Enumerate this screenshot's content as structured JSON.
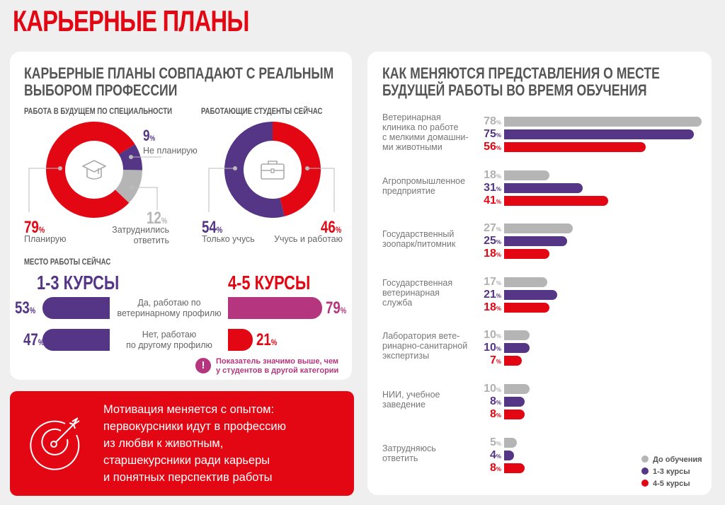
{
  "title": "КАРЬЕРНЫЕ ПЛАНЫ",
  "colors": {
    "red": "#e30613",
    "purple": "#553585",
    "gray": "#b5b5b5",
    "magenta": "#b5367e",
    "text": "#555555"
  },
  "left_card": {
    "title_line1": "КАРЬЕРНЫЕ ПЛАНЫ СОВПАДАЮТ С РЕАЛЬНЫМ",
    "title_line2": "ВЫБОРОМ ПРОФЕССИИ",
    "donut1": {
      "subtitle": "РАБОТА В БУДУЩЕМ ПО СПЕЦИАЛЬНОСТИ",
      "icon": "graduation-cap-icon",
      "slices": [
        {
          "value": "79",
          "unit": "%",
          "label": "Планирую",
          "color": "#e30613"
        },
        {
          "value": "9",
          "unit": "%",
          "label": "Не планирую",
          "color": "#553585"
        },
        {
          "value": "12",
          "unit": "%",
          "label_line1": "Затруднились",
          "label_line2": "ответить",
          "color": "#b5b5b5"
        }
      ]
    },
    "donut2": {
      "subtitle": "РАБОТАЮЩИЕ СТУДЕНТЫ СЕЙЧАС",
      "icon": "briefcase-icon",
      "slices": [
        {
          "value": "46",
          "unit": "%",
          "label": "Учусь и работаю",
          "color": "#e30613"
        },
        {
          "value": "54",
          "unit": "%",
          "label": "Только учусь",
          "color": "#553585"
        }
      ]
    },
    "workplace": {
      "subtitle": "МЕСТО РАБОТЫ СЕЙЧАС",
      "group1": "1-3 КУРСЫ",
      "group2": "4-5 КУРСЫ",
      "rows": [
        {
          "label_line1": "Да, работаю по",
          "label_line2": "ветеринарному профилю",
          "g1": "53",
          "g2": "79",
          "unit": "%"
        },
        {
          "label_line1": "Нет, работаю",
          "label_line2": "по другому профилю",
          "g1": "47",
          "g2": "21",
          "unit": "%"
        }
      ],
      "note_icon": "!",
      "note_line1": "Показатель значимо выше, чем",
      "note_line2": "у студентов в другой категории"
    }
  },
  "red_box": {
    "icon": "target-arrow-icon",
    "lines": [
      "Мотивация меняется с опытом:",
      "первокурсники идут в профессию",
      "из любви к животным,",
      "старшекурсники ради карьеры",
      "и понятных перспектив работы"
    ]
  },
  "chart_data": [
    {
      "type": "pie",
      "title": "РАБОТА В БУДУЩЕМ ПО СПЕЦИАЛЬНОСТИ",
      "categories": [
        "Планирую",
        "Не планирую",
        "Затруднились ответить"
      ],
      "values": [
        79,
        9,
        12
      ]
    },
    {
      "type": "pie",
      "title": "РАБОТАЮЩИЕ СТУДЕНТЫ СЕЙЧАС",
      "categories": [
        "Учусь и работаю",
        "Только учусь"
      ],
      "values": [
        46,
        54
      ]
    },
    {
      "type": "bar",
      "title": "МЕСТО РАБОТЫ СЕЙЧАС",
      "categories": [
        "Да, работаю по ветеринарному профилю",
        "Нет, работаю по другому профилю"
      ],
      "series": [
        {
          "name": "1-3 КУРСЫ",
          "values": [
            53,
            47
          ]
        },
        {
          "name": "4-5 КУРСЫ",
          "values": [
            79,
            21
          ]
        }
      ]
    },
    {
      "type": "bar",
      "orientation": "horizontal",
      "title_line1": "КАК МЕНЯЮТСЯ ПРЕДСТАВЛЕНИЯ О МЕСТЕ",
      "title_line2": "БУДУЩЕЙ РАБОТЫ ВО ВРЕМЯ ОБУЧЕНИЯ",
      "unit": "%",
      "xlim": [
        0,
        78
      ],
      "legend_position": "bottom-right",
      "categories": [
        [
          "Ветеринарная",
          "клиника по работе",
          "с мелкими домашни-",
          "ми животными"
        ],
        [
          "Агропромышленное",
          "предприятие"
        ],
        [
          "Государственный",
          "зоопарк/питомник"
        ],
        [
          "Государственная",
          "ветеринарная",
          "служба"
        ],
        [
          "Лаборатория вете-",
          "ринарно-санитарной",
          "экспертизы"
        ],
        [
          "НИИ, учебное",
          "заведение"
        ],
        [
          "Затрудняюсь",
          "ответить"
        ]
      ],
      "series": [
        {
          "name": "До обучения",
          "color": "#b5b5b5",
          "values": [
            78,
            18,
            27,
            17,
            10,
            10,
            5
          ]
        },
        {
          "name": "1-3 курсы",
          "color": "#553585",
          "values": [
            75,
            31,
            25,
            21,
            10,
            8,
            4
          ]
        },
        {
          "name": "4-5 курсы",
          "color": "#e30613",
          "values": [
            56,
            41,
            18,
            18,
            7,
            8,
            8
          ]
        }
      ]
    }
  ]
}
